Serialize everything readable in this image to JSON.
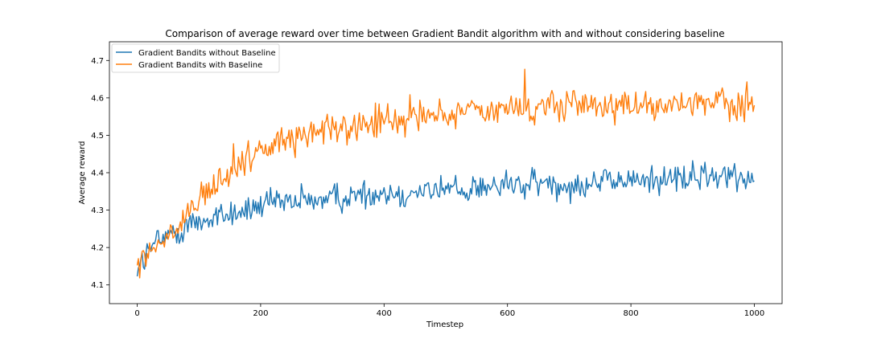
{
  "chart_data": {
    "type": "line",
    "title": "Comparison of average reward over time between Gradient Bandit algorithm with and without considering baseline",
    "xlabel": "Timestep",
    "ylabel": "Average reward",
    "xlim": [
      -45,
      1045
    ],
    "ylim": [
      4.05,
      4.75
    ],
    "xticks": [
      0,
      200,
      400,
      600,
      800,
      1000
    ],
    "yticks": [
      4.1,
      4.2,
      4.3,
      4.4,
      4.5,
      4.6,
      4.7
    ],
    "grid": false,
    "legend": "top-left",
    "series": [
      {
        "name": "Gradient Bandits without Baseline",
        "color": "#1f77b4",
        "x": [
          0,
          10,
          20,
          30,
          40,
          50,
          60,
          70,
          80,
          90,
          100,
          125,
          150,
          175,
          200,
          250,
          300,
          350,
          400,
          450,
          500,
          550,
          600,
          650,
          700,
          750,
          800,
          850,
          900,
          950,
          1000
        ],
        "y": [
          4.15,
          4.17,
          4.19,
          4.21,
          4.22,
          4.23,
          4.24,
          4.25,
          4.26,
          4.265,
          4.27,
          4.28,
          4.29,
          4.3,
          4.31,
          4.32,
          4.33,
          4.34,
          4.345,
          4.35,
          4.355,
          4.36,
          4.365,
          4.37,
          4.37,
          4.375,
          4.38,
          4.385,
          4.385,
          4.39,
          4.39
        ]
      },
      {
        "name": "Gradient Bandits with Baseline",
        "color": "#ff7f0e",
        "x": [
          0,
          10,
          20,
          30,
          40,
          50,
          60,
          70,
          80,
          90,
          100,
          125,
          150,
          175,
          200,
          250,
          300,
          350,
          400,
          450,
          500,
          550,
          600,
          650,
          700,
          750,
          800,
          850,
          900,
          950,
          1000
        ],
        "y": [
          4.16,
          4.17,
          4.18,
          4.2,
          4.21,
          4.22,
          4.24,
          4.26,
          4.28,
          4.3,
          4.32,
          4.36,
          4.4,
          4.43,
          4.46,
          4.49,
          4.51,
          4.52,
          4.54,
          4.55,
          4.56,
          4.565,
          4.57,
          4.575,
          4.575,
          4.58,
          4.58,
          4.585,
          4.585,
          4.585,
          4.585
        ]
      }
    ]
  }
}
